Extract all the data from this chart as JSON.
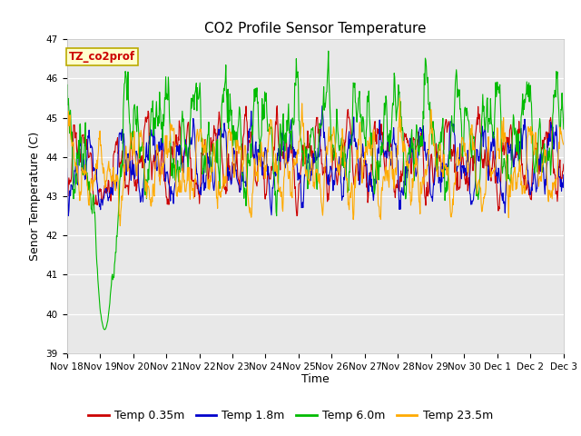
{
  "title": "CO2 Profile Sensor Temperature",
  "ylabel": "Senor Temperature (C)",
  "xlabel": "Time",
  "annotation": "TZ_co2prof",
  "ylim": [
    39.0,
    47.0
  ],
  "yticks": [
    39.0,
    40.0,
    41.0,
    42.0,
    43.0,
    44.0,
    45.0,
    46.0,
    47.0
  ],
  "xtick_labels": [
    "Nov 18",
    "Nov 19",
    "Nov 20",
    "Nov 21",
    "Nov 22",
    "Nov 23",
    "Nov 24",
    "Nov 25",
    "Nov 26",
    "Nov 27",
    "Nov 28",
    "Nov 29",
    "Nov 30",
    "Dec 1",
    "Dec 2",
    "Dec 3"
  ],
  "colors": {
    "red": "#CC0000",
    "blue": "#0000CC",
    "green": "#00BB00",
    "orange": "#FFAA00"
  },
  "legend_labels": [
    "Temp 0.35m",
    "Temp 1.8m",
    "Temp 6.0m",
    "Temp 23.5m"
  ],
  "background_color": "#E8E8E8",
  "title_fontsize": 11,
  "label_fontsize": 9,
  "tick_fontsize": 7.5,
  "legend_fontsize": 9
}
